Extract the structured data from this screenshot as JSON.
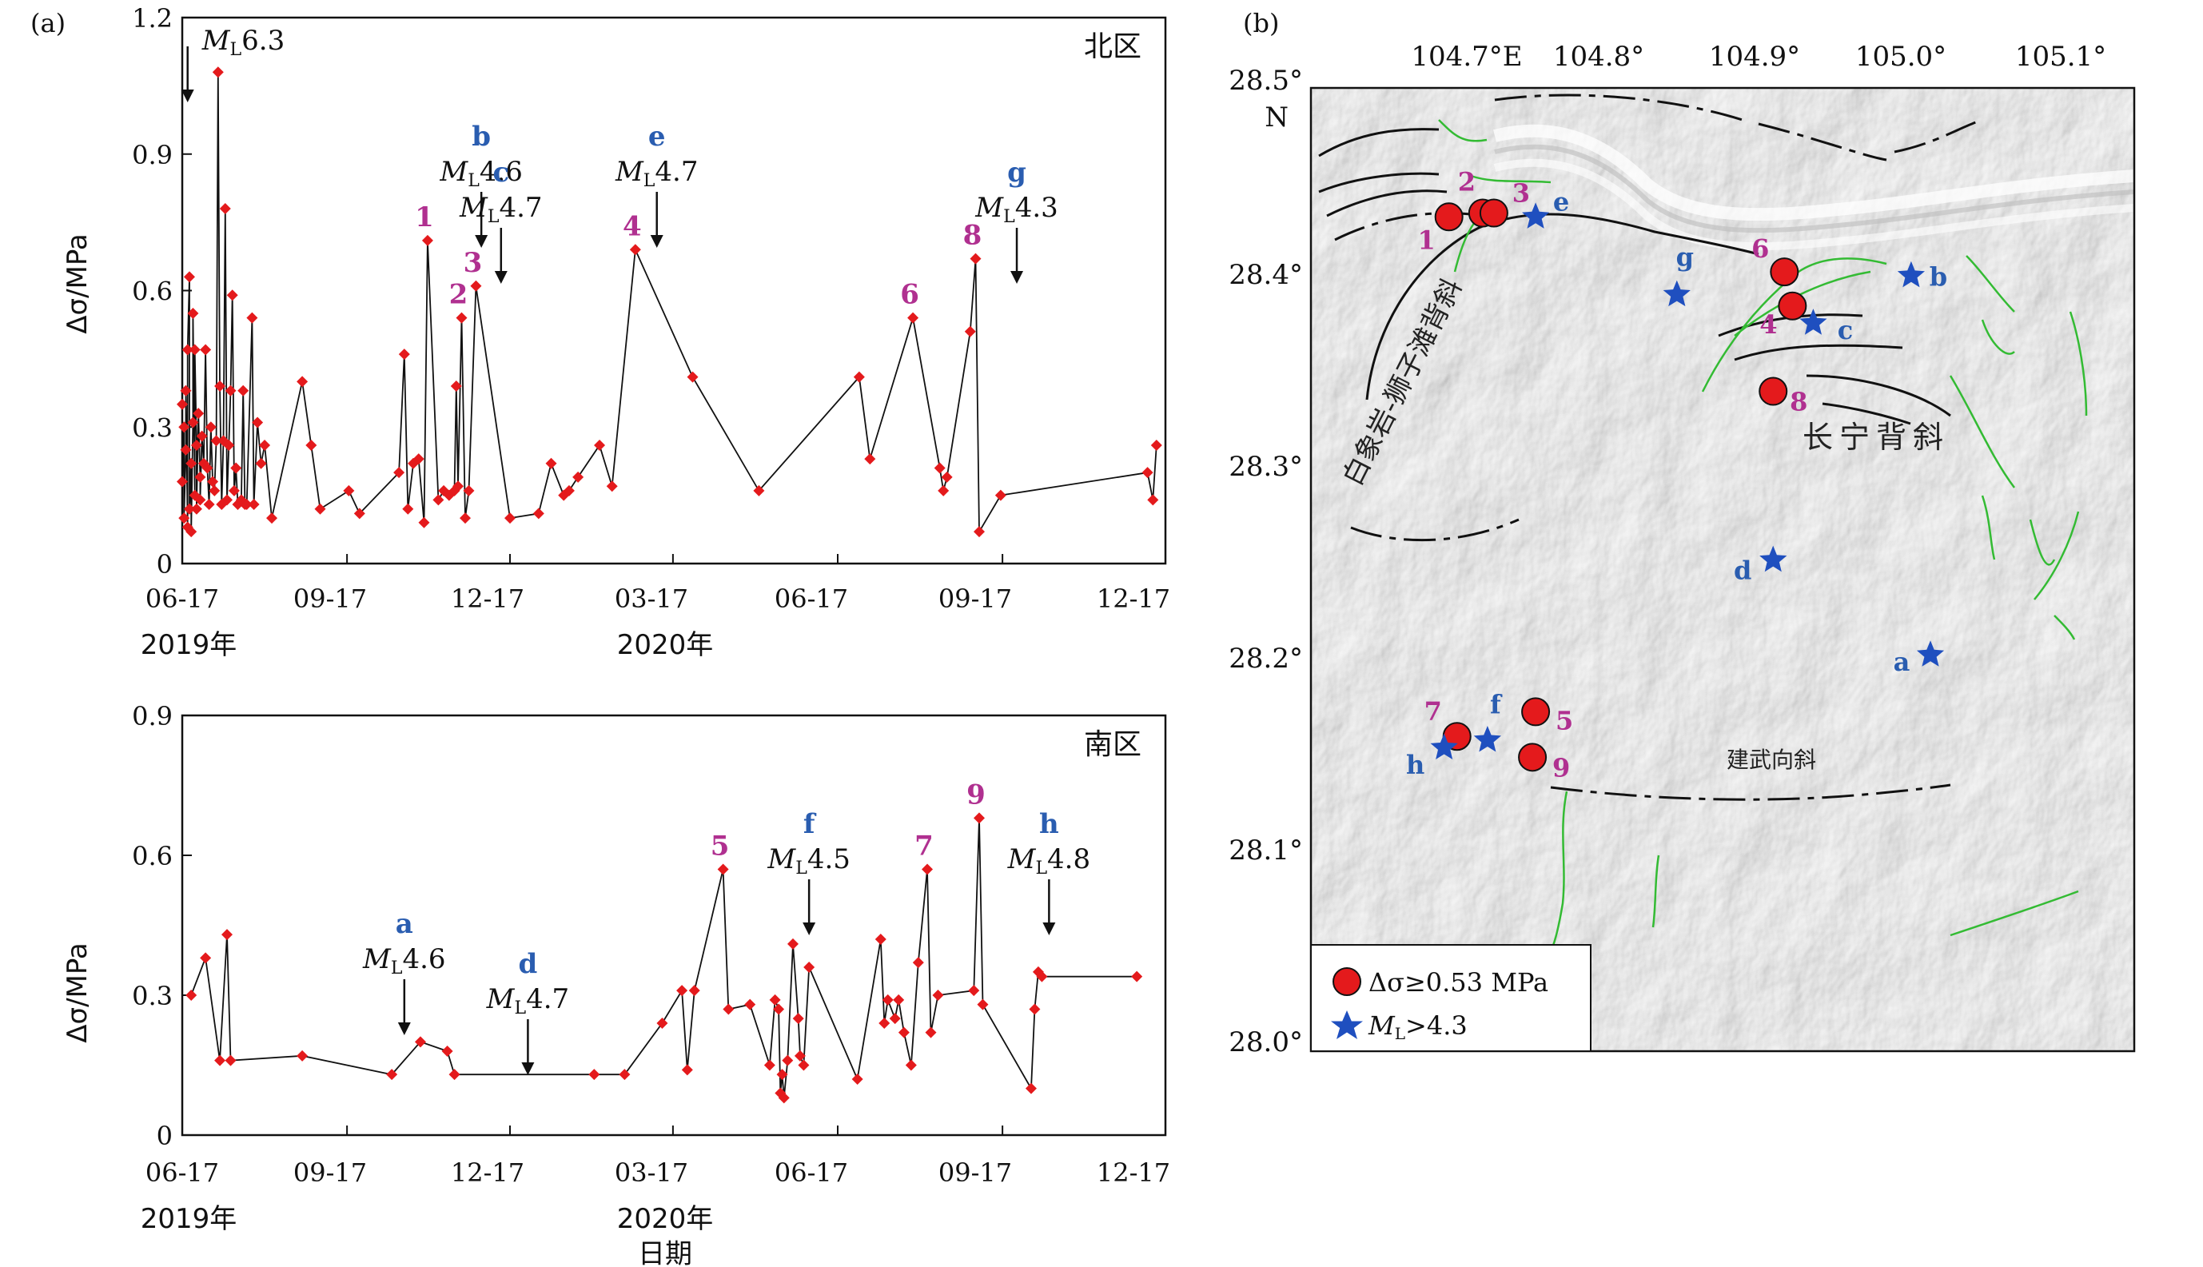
{
  "panel_a": {
    "letter": "(a)",
    "ylabel": "Δσ/MPa",
    "xlabel": "日期",
    "xticks": [
      "06-17",
      "09-17",
      "12-17",
      "03-17",
      "06-17",
      "09-17",
      "12-17"
    ],
    "year_labels": [
      "2019年",
      "2020年"
    ]
  },
  "panel_b": {
    "letter": "(b)",
    "top_lon_labels": [
      "104.7°E",
      "104.8°",
      "104.9°",
      "105.0°",
      "105.1°"
    ],
    "left_lat_labels": [
      "28.5°",
      "28.4°",
      "28.3°",
      "28.2°",
      "28.1°",
      "28.0°"
    ],
    "north_label": "N",
    "anticline_baixiang": "白象岩-狮子滩背斜",
    "anticline_changning": "长宁背斜",
    "syncline_jianwu": "建武向斜",
    "legend": {
      "circle_label": "Δσ≥0.53 MPa",
      "star_label_pre": "M",
      "star_label_sub": "L",
      "star_label_post": ">4.3"
    },
    "colors": {
      "circle": "#e41a1c",
      "star": "#1f4fbf",
      "circle_label": "#b03090",
      "star_label": "#2a5db0",
      "fault": "#33bb33"
    },
    "circles": [
      {
        "id": "1",
        "lon": 104.728,
        "lat": 28.432
      },
      {
        "id": "2",
        "lon": 104.749,
        "lat": 28.434
      },
      {
        "id": "3",
        "lon": 104.756,
        "lat": 28.434
      },
      {
        "id": "4",
        "lon": 104.942,
        "lat": 28.385
      },
      {
        "id": "6",
        "lon": 104.937,
        "lat": 28.403
      },
      {
        "id": "8",
        "lon": 104.93,
        "lat": 28.34
      },
      {
        "id": "5",
        "lon": 104.782,
        "lat": 28.171
      },
      {
        "id": "7",
        "lon": 104.733,
        "lat": 28.158
      },
      {
        "id": "9",
        "lon": 104.78,
        "lat": 28.147
      }
    ],
    "stars": [
      {
        "id": "e",
        "lon": 104.782,
        "lat": 28.432
      },
      {
        "id": "g",
        "lon": 104.87,
        "lat": 28.391
      },
      {
        "id": "c",
        "lon": 104.955,
        "lat": 28.376
      },
      {
        "id": "b",
        "lon": 105.016,
        "lat": 28.401
      },
      {
        "id": "d",
        "lon": 104.93,
        "lat": 28.251
      },
      {
        "id": "a",
        "lon": 105.028,
        "lat": 28.201
      },
      {
        "id": "f",
        "lon": 104.752,
        "lat": 28.156
      },
      {
        "id": "h",
        "lon": 104.725,
        "lat": 28.152
      }
    ]
  },
  "chart_data": [
    {
      "type": "line",
      "panel": "(a) top",
      "region_label": "北区",
      "ylabel": "Δσ/MPa",
      "xlabel": "",
      "yticks": [
        "0",
        "0.3",
        "0.6",
        "0.9",
        "1.2"
      ],
      "ylim": [
        0,
        1.2
      ],
      "xlim": [
        "2019-06-17",
        "2020-12-17"
      ],
      "x_unit": "date",
      "series": [
        {
          "values": [
            [
              "2019-06-17",
              0.35
            ],
            [
              "2019-06-17",
              0.18
            ],
            [
              "2019-06-18",
              0.3
            ],
            [
              "2019-06-18",
              0.1
            ],
            [
              "2019-06-19",
              0.25
            ],
            [
              "2019-06-19",
              0.38
            ],
            [
              "2019-06-20",
              0.08
            ],
            [
              "2019-06-20",
              0.47
            ],
            [
              "2019-06-21",
              0.63
            ],
            [
              "2019-06-21",
              0.12
            ],
            [
              "2019-06-22",
              0.22
            ],
            [
              "2019-06-22",
              0.07
            ],
            [
              "2019-06-23",
              0.31
            ],
            [
              "2019-06-23",
              0.55
            ],
            [
              "2019-06-24",
              0.15
            ],
            [
              "2019-06-24",
              0.47
            ],
            [
              "2019-06-25",
              0.26
            ],
            [
              "2019-06-25",
              0.12
            ],
            [
              "2019-06-26",
              0.33
            ],
            [
              "2019-06-27",
              0.19
            ],
            [
              "2019-06-27",
              0.14
            ],
            [
              "2019-06-28",
              0.28
            ],
            [
              "2019-06-29",
              0.22
            ],
            [
              "2019-06-30",
              0.47
            ],
            [
              "2019-07-01",
              0.21
            ],
            [
              "2019-07-02",
              0.13
            ],
            [
              "2019-07-03",
              0.3
            ],
            [
              "2019-07-04",
              0.18
            ],
            [
              "2019-07-05",
              0.16
            ],
            [
              "2019-07-06",
              0.27
            ],
            [
              "2019-07-07",
              1.08
            ],
            [
              "2019-07-08",
              0.39
            ],
            [
              "2019-07-09",
              0.13
            ],
            [
              "2019-07-10",
              0.27
            ],
            [
              "2019-07-11",
              0.78
            ],
            [
              "2019-07-12",
              0.14
            ],
            [
              "2019-07-13",
              0.26
            ],
            [
              "2019-07-14",
              0.38
            ],
            [
              "2019-07-15",
              0.59
            ],
            [
              "2019-07-16",
              0.16
            ],
            [
              "2019-07-17",
              0.21
            ],
            [
              "2019-07-18",
              0.13
            ],
            [
              "2019-07-20",
              0.14
            ],
            [
              "2019-07-21",
              0.38
            ],
            [
              "2019-07-22",
              0.13
            ],
            [
              "2019-07-23",
              0.13
            ],
            [
              "2019-07-26",
              0.54
            ],
            [
              "2019-07-27",
              0.13
            ],
            [
              "2019-07-29",
              0.31
            ],
            [
              "2019-07-31",
              0.22
            ],
            [
              "2019-08-02",
              0.26
            ],
            [
              "2019-08-06",
              0.1
            ],
            [
              "2019-08-23",
              0.4
            ],
            [
              "2019-08-28",
              0.26
            ],
            [
              "2019-09-02",
              0.12
            ],
            [
              "2019-09-18",
              0.16
            ],
            [
              "2019-09-24",
              0.11
            ],
            [
              "2019-10-16",
              0.2
            ],
            [
              "2019-10-19",
              0.46
            ],
            [
              "2019-10-21",
              0.12
            ],
            [
              "2019-10-24",
              0.22
            ],
            [
              "2019-10-27",
              0.23
            ],
            [
              "2019-10-30",
              0.09
            ],
            [
              "2019-11-01",
              0.71
            ],
            [
              "2019-11-07",
              0.14
            ],
            [
              "2019-11-10",
              0.16
            ],
            [
              "2019-11-13",
              0.15
            ],
            [
              "2019-11-16",
              0.16
            ],
            [
              "2019-11-17",
              0.39
            ],
            [
              "2019-11-18",
              0.17
            ],
            [
              "2019-11-20",
              0.54
            ],
            [
              "2019-11-22",
              0.1
            ],
            [
              "2019-11-24",
              0.16
            ],
            [
              "2019-11-28",
              0.61
            ],
            [
              "2019-12-17",
              0.1
            ],
            [
              "2020-01-02",
              0.11
            ],
            [
              "2020-01-09",
              0.22
            ],
            [
              "2020-01-16",
              0.15
            ],
            [
              "2020-01-19",
              0.16
            ],
            [
              "2020-01-24",
              0.19
            ],
            [
              "2020-02-05",
              0.26
            ],
            [
              "2020-02-12",
              0.17
            ],
            [
              "2020-02-25",
              0.69
            ],
            [
              "2020-03-28",
              0.41
            ],
            [
              "2020-05-04",
              0.16
            ],
            [
              "2020-06-29",
              0.41
            ],
            [
              "2020-07-05",
              0.23
            ],
            [
              "2020-07-29",
              0.54
            ],
            [
              "2020-08-13",
              0.21
            ],
            [
              "2020-08-15",
              0.16
            ],
            [
              "2020-08-17",
              0.19
            ],
            [
              "2020-08-30",
              0.51
            ],
            [
              "2020-09-02",
              0.67
            ],
            [
              "2020-09-04",
              0.07
            ],
            [
              "2020-09-16",
              0.15
            ],
            [
              "2020-12-07",
              0.2
            ],
            [
              "2020-12-10",
              0.14
            ],
            [
              "2020-12-12",
              0.26
            ]
          ]
        }
      ],
      "annotations": [
        {
          "label": "",
          "text_pre": "M",
          "text_sub": "L",
          "text_post": "6.3",
          "date": "2019-06-20"
        },
        {
          "label": "b",
          "text_pre": "M",
          "text_sub": "L",
          "text_post": "4.6",
          "date": "2019-12-01"
        },
        {
          "label": "c",
          "text_pre": "M",
          "text_sub": "L",
          "text_post": "4.7",
          "date": "2019-12-12"
        },
        {
          "label": "e",
          "text_pre": "M",
          "text_sub": "L",
          "text_post": "4.7",
          "date": "2020-03-08"
        },
        {
          "label": "g",
          "text_pre": "M",
          "text_sub": "L",
          "text_post": "4.3",
          "date": "2020-09-25"
        }
      ],
      "point_labels": [
        {
          "id": "1",
          "date": "2019-11-01",
          "value": 0.71
        },
        {
          "id": "2",
          "date": "2019-11-20",
          "value": 0.54
        },
        {
          "id": "3",
          "date": "2019-11-28",
          "value": 0.61
        },
        {
          "id": "4",
          "date": "2020-02-25",
          "value": 0.69
        },
        {
          "id": "6",
          "date": "2020-07-29",
          "value": 0.54
        },
        {
          "id": "8",
          "date": "2020-09-02",
          "value": 0.67
        }
      ]
    },
    {
      "type": "line",
      "panel": "(a) bottom",
      "region_label": "南区",
      "ylabel": "Δσ/MPa",
      "xlabel": "日期",
      "yticks": [
        "0",
        "0.3",
        "0.6",
        "0.9"
      ],
      "ylim": [
        0,
        0.9
      ],
      "xlim": [
        "2019-06-17",
        "2020-12-17"
      ],
      "x_unit": "date",
      "series": [
        {
          "values": [
            [
              "2019-06-22",
              0.3
            ],
            [
              "2019-06-30",
              0.38
            ],
            [
              "2019-07-08",
              0.16
            ],
            [
              "2019-07-12",
              0.43
            ],
            [
              "2019-07-14",
              0.16
            ],
            [
              "2019-08-23",
              0.17
            ],
            [
              "2019-10-12",
              0.13
            ],
            [
              "2019-10-28",
              0.2
            ],
            [
              "2019-11-12",
              0.18
            ],
            [
              "2019-11-16",
              0.13
            ],
            [
              "2020-02-02",
              0.13
            ],
            [
              "2020-02-19",
              0.13
            ],
            [
              "2020-03-11",
              0.24
            ],
            [
              "2020-03-22",
              0.31
            ],
            [
              "2020-03-25",
              0.14
            ],
            [
              "2020-03-29",
              0.31
            ],
            [
              "2020-04-14",
              0.57
            ],
            [
              "2020-04-17",
              0.27
            ],
            [
              "2020-04-29",
              0.28
            ],
            [
              "2020-05-10",
              0.15
            ],
            [
              "2020-05-13",
              0.29
            ],
            [
              "2020-05-15",
              0.27
            ],
            [
              "2020-05-16",
              0.09
            ],
            [
              "2020-05-17",
              0.13
            ],
            [
              "2020-05-18",
              0.08
            ],
            [
              "2020-05-20",
              0.16
            ],
            [
              "2020-05-23",
              0.41
            ],
            [
              "2020-05-26",
              0.25
            ],
            [
              "2020-05-27",
              0.17
            ],
            [
              "2020-05-29",
              0.15
            ],
            [
              "2020-06-01",
              0.36
            ],
            [
              "2020-06-28",
              0.12
            ],
            [
              "2020-07-11",
              0.42
            ],
            [
              "2020-07-13",
              0.24
            ],
            [
              "2020-07-15",
              0.29
            ],
            [
              "2020-07-19",
              0.25
            ],
            [
              "2020-07-21",
              0.29
            ],
            [
              "2020-07-24",
              0.22
            ],
            [
              "2020-07-28",
              0.15
            ],
            [
              "2020-08-01",
              0.37
            ],
            [
              "2020-08-06",
              0.57
            ],
            [
              "2020-08-08",
              0.22
            ],
            [
              "2020-08-12",
              0.3
            ],
            [
              "2020-09-01",
              0.31
            ],
            [
              "2020-09-04",
              0.68
            ],
            [
              "2020-09-06",
              0.28
            ],
            [
              "2020-10-03",
              0.1
            ],
            [
              "2020-10-05",
              0.27
            ],
            [
              "2020-10-07",
              0.35
            ],
            [
              "2020-10-09",
              0.34
            ],
            [
              "2020-12-01",
              0.34
            ]
          ]
        }
      ],
      "annotations": [
        {
          "label": "a",
          "text_pre": "M",
          "text_sub": "L",
          "text_post": "4.6",
          "date": "2019-10-19"
        },
        {
          "label": "d",
          "text_pre": "M",
          "text_sub": "L",
          "text_post": "4.7",
          "date": "2019-12-27"
        },
        {
          "label": "f",
          "text_pre": "M",
          "text_sub": "L",
          "text_post": "4.5",
          "date": "2020-06-01"
        },
        {
          "label": "h",
          "text_pre": "M",
          "text_sub": "L",
          "text_post": "4.8",
          "date": "2020-10-13"
        }
      ],
      "point_labels": [
        {
          "id": "5",
          "date": "2020-04-14",
          "value": 0.57
        },
        {
          "id": "7",
          "date": "2020-08-06",
          "value": 0.57
        },
        {
          "id": "9",
          "date": "2020-09-04",
          "value": 0.68
        }
      ]
    }
  ]
}
